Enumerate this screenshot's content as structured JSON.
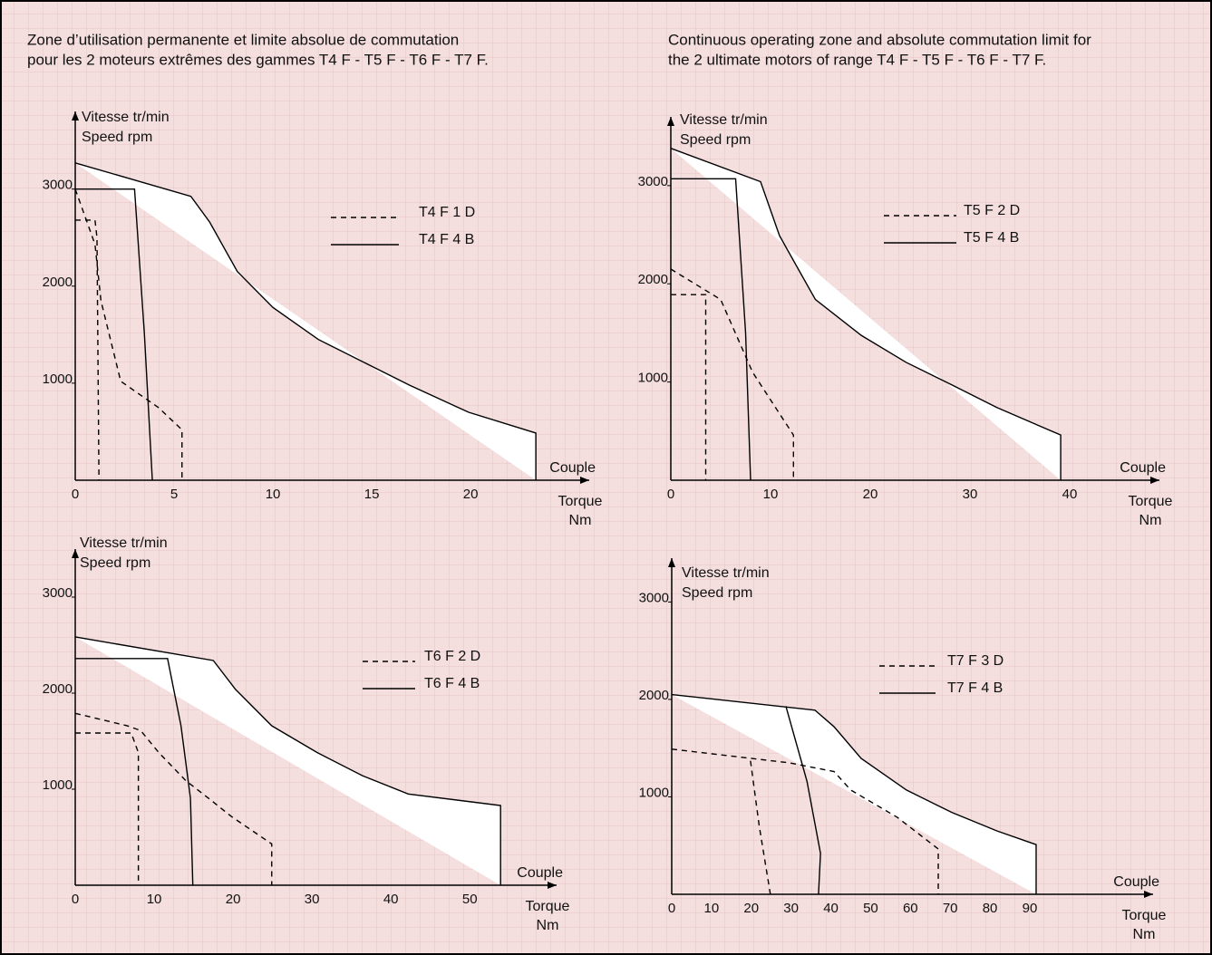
{
  "header": {
    "fr": [
      "Zone d’utilisation permanente et limite absolue de commutation",
      "pour les 2 moteurs extrêmes des gammes T4 F - T5 F - T6 F - T7 F."
    ],
    "en": [
      "Continuous operating zone and absolute commutation limit for",
      "the 2 ultimate motors of range  T4 F - T5 F - T6 F - T7 F."
    ]
  },
  "chart_data": [
    {
      "type": "line",
      "ylabel": [
        "Vitesse tr/min",
        "Speed rpm"
      ],
      "xlabel": [
        "Couple",
        "Torque",
        "Nm"
      ],
      "xlim": [
        0,
        26
      ],
      "ylim": [
        0,
        3800
      ],
      "xticks": [
        0,
        5,
        10,
        15,
        20
      ],
      "yticks": [
        1000,
        2000,
        3000
      ],
      "series": [
        {
          "color": "#000000",
          "fill": "#ffffff",
          "x": [
            0,
            5.85,
            6.8,
            8.2,
            10,
            12.3,
            14.6,
            16.9,
            19.9,
            23.3,
            23.3
          ],
          "values": [
            3270,
            2925,
            2660,
            2150,
            1780,
            1450,
            1215,
            980,
            700,
            486,
            0
          ]
        },
        {
          "name": "T4 F 1 D",
          "color": "#000000",
          "dash": true,
          "x": [
            0,
            1.0,
            1.3,
            2.3,
            4.2,
            5.4,
            5.4,
            null,
            0,
            1.0,
            1.1,
            1.2
          ],
          "values": [
            3000,
            2430,
            1850,
            1020,
            750,
            520,
            0,
            null,
            2680,
            2680,
            2500,
            0
          ]
        },
        {
          "name": "T4 F 4 B",
          "color": "#000000",
          "dash": false,
          "x": [
            0,
            3.0,
            3.5,
            3.9
          ],
          "values": [
            3000,
            3000,
            1500,
            0
          ]
        }
      ]
    },
    {
      "type": "line",
      "ylabel": [
        "Vitesse tr/min",
        "Speed rpm"
      ],
      "xlabel": [
        "Couple",
        "Torque",
        "Nm"
      ],
      "xlim": [
        0,
        49
      ],
      "ylim": [
        0,
        3700
      ],
      "xticks": [
        0,
        10,
        20,
        30,
        40
      ],
      "yticks": [
        1000,
        2000,
        3000
      ],
      "series": [
        {
          "color": "#000000",
          "fill": "#ffffff",
          "x": [
            0,
            9,
            10.9,
            14.5,
            19.1,
            23.6,
            28.2,
            32.7,
            39.1,
            39.1
          ],
          "values": [
            3380,
            3040,
            2490,
            1840,
            1475,
            1200,
            970,
            740,
            460,
            0
          ]
        },
        {
          "name": "T5 F 2 D",
          "color": "#000000",
          "dash": true,
          "x": [
            0,
            5.0,
            8.2,
            10.5,
            12.3,
            12.3,
            null,
            0,
            3.5,
            3.5
          ],
          "values": [
            2150,
            1840,
            1100,
            740,
            460,
            0,
            null,
            1890,
            1890,
            0
          ]
        },
        {
          "name": "T5 F 4 B",
          "color": "#000000",
          "dash": false,
          "x": [
            0,
            6.5,
            7.5,
            8.0
          ],
          "values": [
            3070,
            3070,
            1500,
            0
          ]
        }
      ]
    },
    {
      "type": "line",
      "ylabel": [
        "Vitesse tr/min",
        "Speed rpm"
      ],
      "xlabel": [
        "Couple",
        "Torque",
        "Nm"
      ],
      "xlim": [
        0,
        61
      ],
      "ylim": [
        0,
        3500
      ],
      "xticks": [
        0,
        10,
        20,
        30,
        40,
        50
      ],
      "yticks": [
        1000,
        2000,
        3000
      ],
      "series": [
        {
          "color": "#000000",
          "fill": "#ffffff",
          "x": [
            0,
            17.5,
            20.3,
            24.9,
            30.7,
            36.4,
            42.2,
            53.9,
            53.9
          ],
          "values": [
            2585,
            2340,
            2040,
            1660,
            1380,
            1140,
            950,
            830,
            0
          ]
        },
        {
          "name": "T6 F 2 D",
          "color": "#000000",
          "dash": true,
          "x": [
            0,
            6.6,
            8.3,
            10.6,
            14,
            16.9,
            19.8,
            24.9,
            24.9,
            null,
            0,
            7.1,
            8.0,
            8.0
          ],
          "values": [
            1790,
            1660,
            1610,
            1380,
            1090,
            905,
            715,
            430,
            0,
            null,
            1585,
            1585,
            1380,
            0
          ]
        },
        {
          "name": "T6 F 4 B",
          "color": "#000000",
          "dash": false,
          "x": [
            0,
            11.7,
            13.4,
            14.6,
            14.9
          ],
          "values": [
            2360,
            2360,
            1660,
            905,
            0
          ]
        }
      ]
    },
    {
      "type": "line",
      "ylabel": [
        "Vitesse tr/min",
        "Speed rpm"
      ],
      "xlabel": [
        "Couple",
        "Torque",
        "Nm"
      ],
      "xlim": [
        0,
        121
      ],
      "ylim": [
        0,
        3450
      ],
      "xticks": [
        0,
        10,
        20,
        30,
        40,
        50,
        60,
        70,
        80,
        90
      ],
      "yticks": [
        1000,
        2000,
        3000
      ],
      "series": [
        {
          "color": "#000000",
          "fill": "#ffffff",
          "x": [
            0,
            36,
            40.8,
            47.6,
            59,
            70.4,
            81.8,
            91.6,
            91.6
          ],
          "values": [
            2050,
            1890,
            1720,
            1395,
            1070,
            840,
            650,
            510,
            0
          ]
        },
        {
          "name": "T7 F 3 D",
          "color": "#000000",
          "dash": true,
          "x": [
            0,
            29.4,
            40.8,
            45,
            56.7,
            67,
            67,
            null,
            19.8,
            22,
            24.8
          ],
          "values": [
            1490,
            1350,
            1260,
            1070,
            790,
            465,
            0,
            null,
            1370,
            700,
            0
          ]
        },
        {
          "name": "T7 F 4 B",
          "color": "#000000",
          "dash": false,
          "x": [
            28.7,
            34,
            37.4,
            36.9
          ],
          "values": [
            1930,
            1160,
            420,
            0
          ]
        }
      ]
    }
  ]
}
